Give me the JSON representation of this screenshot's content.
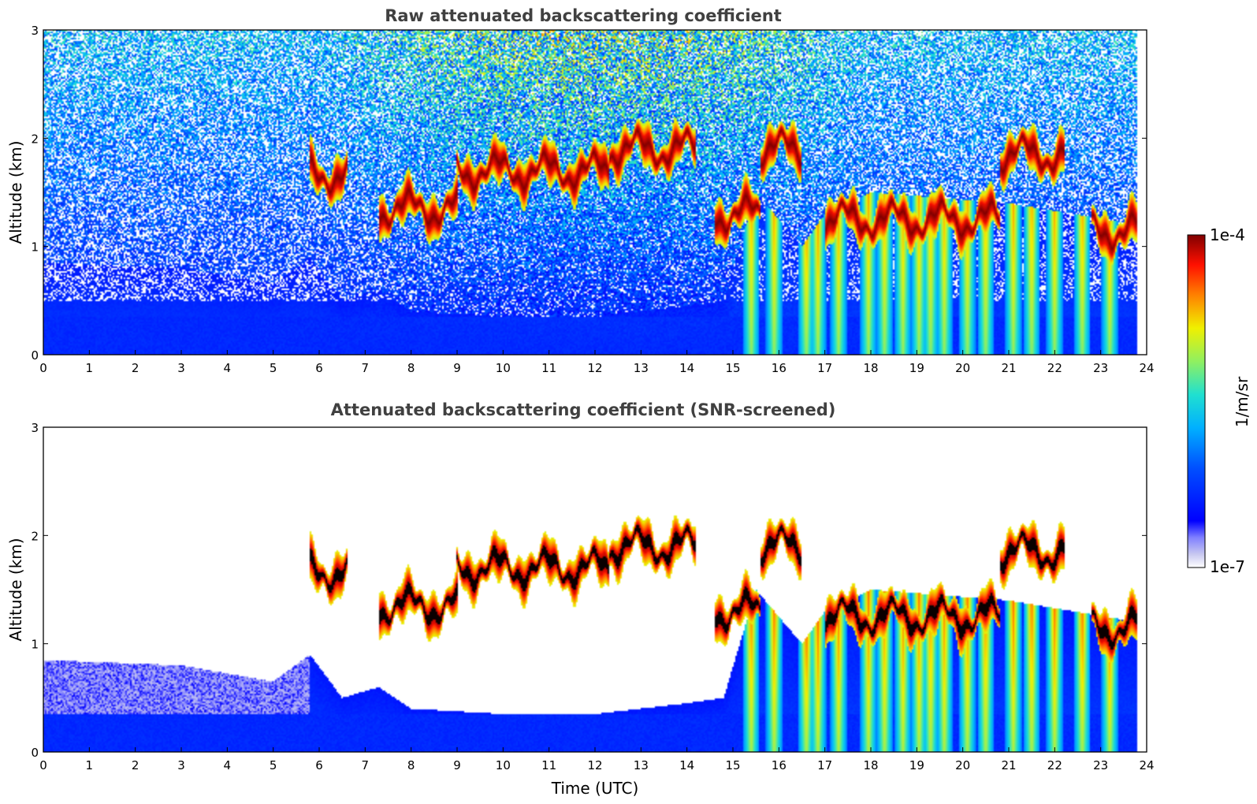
{
  "chart_data": [
    {
      "type": "heatmap",
      "title": "Raw attenuated backscattering coefficient",
      "xlabel": "",
      "ylabel": "Altitude (km)",
      "xlim": [
        0,
        24
      ],
      "ylim": [
        0,
        3
      ],
      "xticks": [
        0,
        1,
        2,
        3,
        4,
        5,
        6,
        7,
        8,
        9,
        10,
        11,
        12,
        13,
        14,
        15,
        16,
        17,
        18,
        19,
        20,
        21,
        22,
        23,
        24
      ],
      "yticks": [
        0,
        1,
        2,
        3
      ],
      "layers": [
        {
          "t0": 5.8,
          "t1": 6.6,
          "z": 1.67
        },
        {
          "t0": 7.3,
          "t1": 9.0,
          "z": 1.35
        },
        {
          "t0": 9.0,
          "t1": 12.3,
          "z": 1.7
        },
        {
          "t0": 12.3,
          "t1": 14.2,
          "z": 1.9
        },
        {
          "t0": 14.6,
          "t1": 15.6,
          "z": 1.3
        },
        {
          "t0": 15.6,
          "t1": 16.5,
          "z": 1.9
        },
        {
          "t0": 17.0,
          "t1": 20.8,
          "z": 1.25
        },
        {
          "t0": 20.8,
          "t1": 22.2,
          "z": 1.85
        },
        {
          "t0": 22.8,
          "t1": 23.8,
          "z": 1.15
        }
      ]
    },
    {
      "type": "heatmap",
      "title": "Attenuated backscattering coefficient (SNR-screened)",
      "xlabel": "Time (UTC)",
      "ylabel": "Altitude (km)",
      "xlim": [
        0,
        24
      ],
      "ylim": [
        0,
        3
      ],
      "xticks": [
        0,
        1,
        2,
        3,
        4,
        5,
        6,
        7,
        8,
        9,
        10,
        11,
        12,
        13,
        14,
        15,
        16,
        17,
        18,
        19,
        20,
        21,
        22,
        23,
        24
      ],
      "yticks": [
        0,
        1,
        2,
        3
      ],
      "boundary_layer_top_km": [
        [
          0,
          0.85
        ],
        [
          3,
          0.8
        ],
        [
          5,
          0.65
        ],
        [
          5.8,
          0.9
        ],
        [
          6.5,
          0.5
        ],
        [
          7.3,
          0.6
        ],
        [
          8,
          0.4
        ],
        [
          10,
          0.35
        ],
        [
          12,
          0.35
        ],
        [
          14,
          0.45
        ],
        [
          14.8,
          0.5
        ],
        [
          15.5,
          1.5
        ],
        [
          16.5,
          1.0
        ],
        [
          17,
          1.3
        ],
        [
          18,
          1.5
        ],
        [
          21,
          1.4
        ],
        [
          23.8,
          1.2
        ]
      ]
    }
  ],
  "colorbar": {
    "label": "1/m/sr",
    "min_label": "1e-7",
    "max_label": "1e-4",
    "colormap": "jet"
  }
}
